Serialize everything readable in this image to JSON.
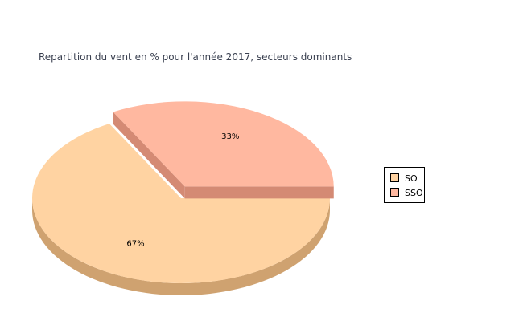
{
  "chart_data": {
    "type": "pie",
    "title": "Repartition du vent en % pour l'année 2017, secteurs dominants",
    "three_d": true,
    "legend_position": "right",
    "slices": [
      {
        "name": "SO",
        "value": 67,
        "label": "67%",
        "color": "#FFD3A2",
        "side_color": "#CFA270",
        "exploded": false
      },
      {
        "name": "SSO",
        "value": 33,
        "label": "33%",
        "color": "#FFB8A0",
        "side_color": "#D48A74",
        "exploded": true
      }
    ]
  }
}
